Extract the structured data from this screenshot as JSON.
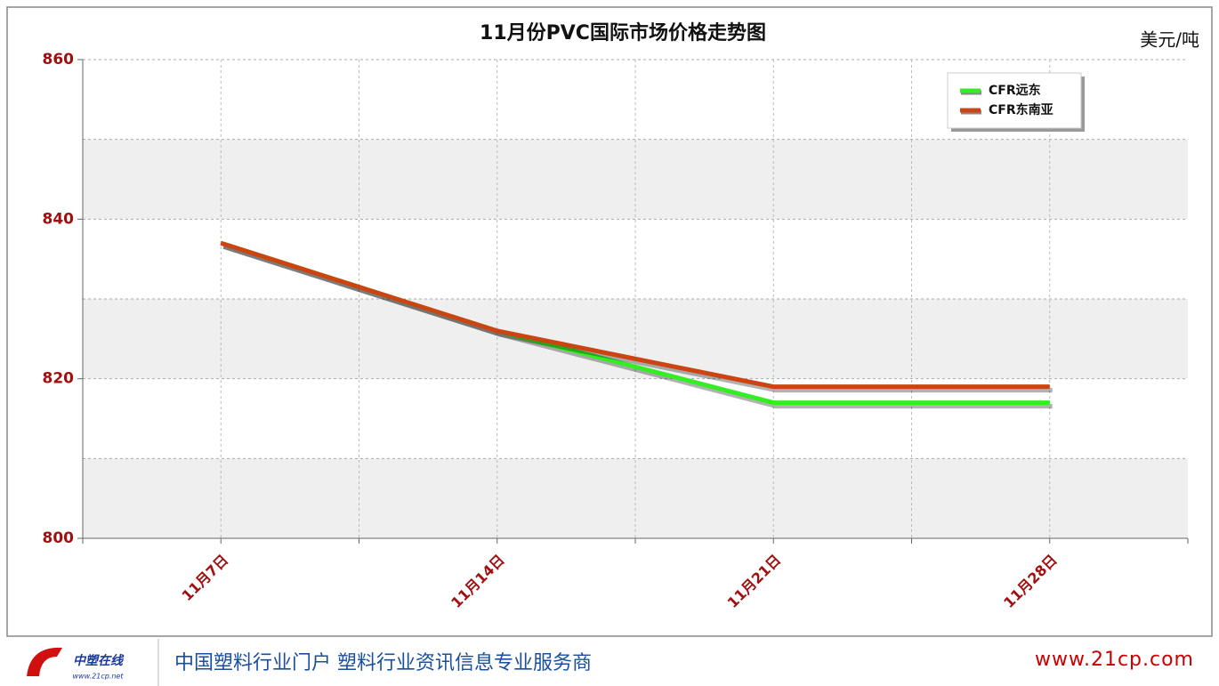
{
  "chart_data": {
    "type": "line",
    "title": "11月份PVC国际市场价格走势图",
    "unit": "美元/吨",
    "categories": [
      "11月7日",
      "11月14日",
      "11月21日",
      "11月28日"
    ],
    "series": [
      {
        "name": "CFR远东",
        "color": "#33ee22",
        "values": [
          837,
          826,
          817,
          817
        ]
      },
      {
        "name": "CFR东南亚",
        "color": "#cc4411",
        "values": [
          837,
          826,
          819,
          819
        ]
      }
    ],
    "ylim": [
      800,
      860
    ],
    "yticks": [
      800,
      820,
      840,
      860
    ],
    "minor_yticks": [
      810,
      830,
      850
    ],
    "grid": true,
    "legend": "upper right"
  },
  "footer": {
    "logo": "中塑在线",
    "logo_url": "www.21cp.net",
    "slogan": "中国塑料行业门户 塑料行业资讯信息专业服务商",
    "site": "www.21cp.com"
  }
}
